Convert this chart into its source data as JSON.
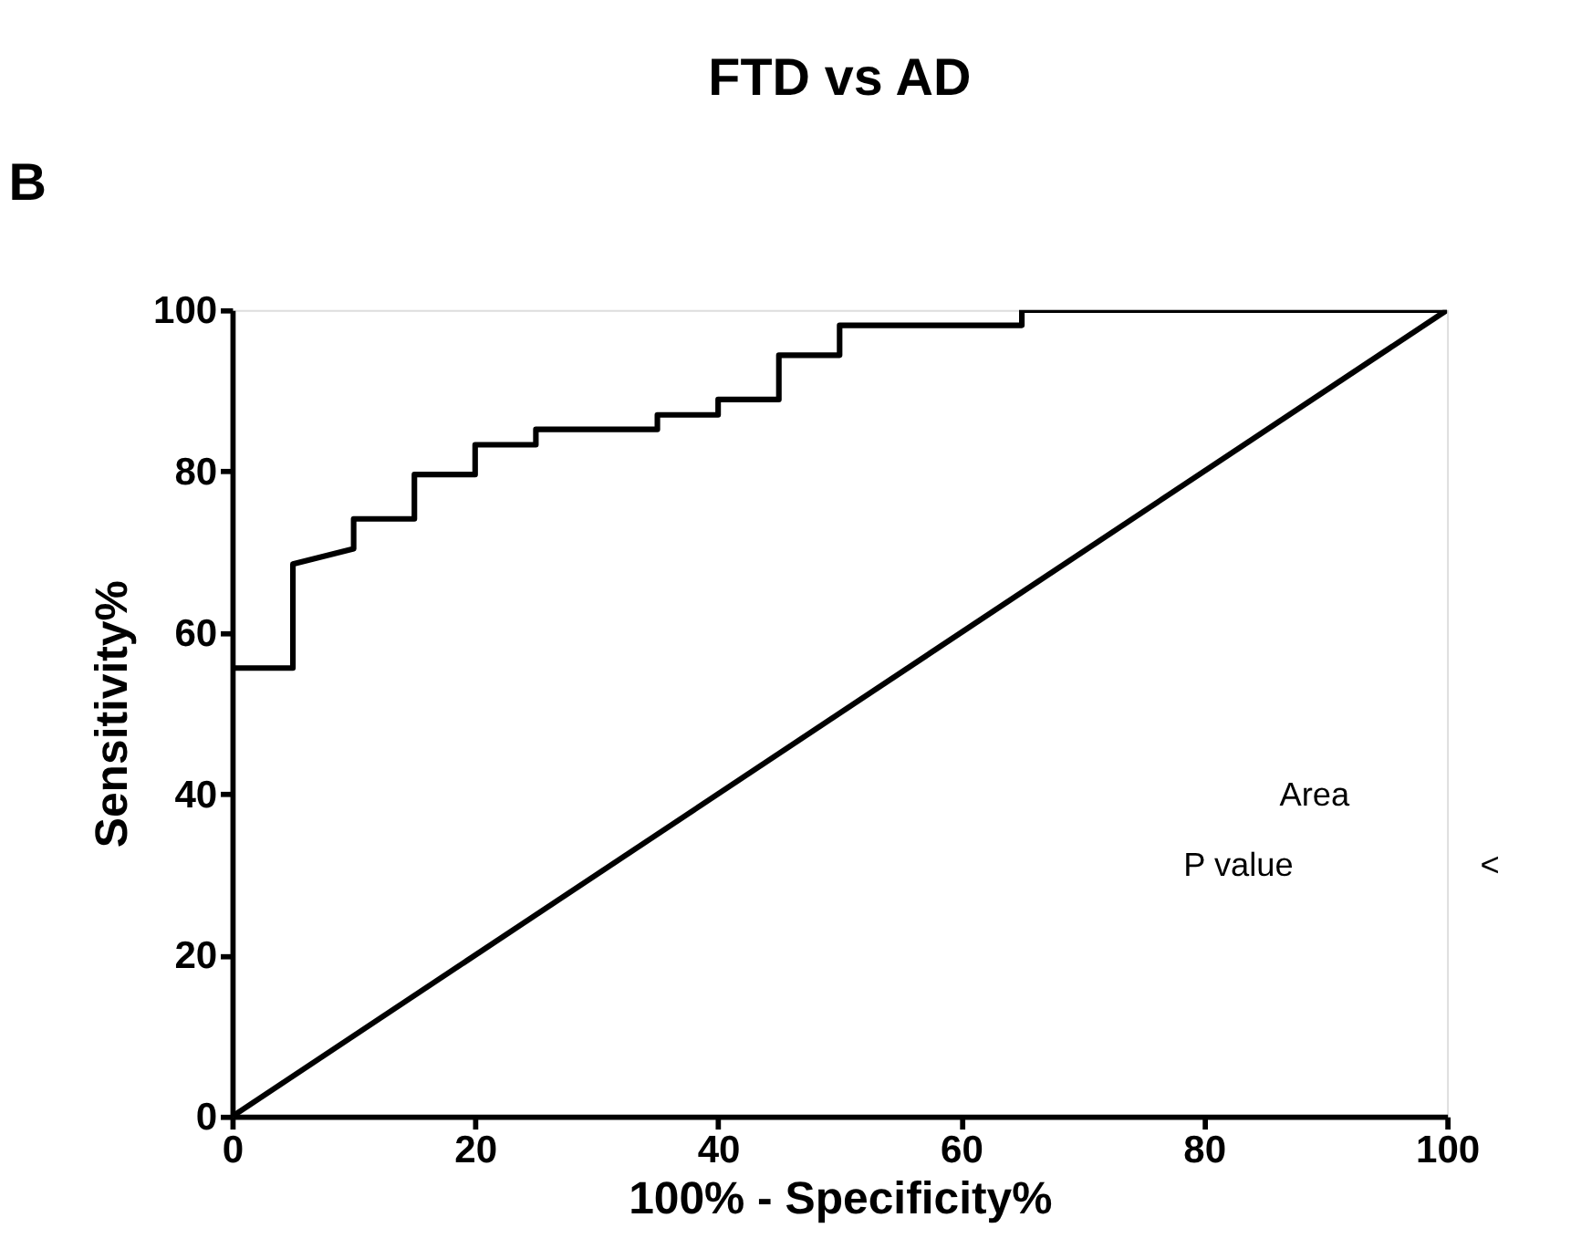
{
  "chart_data": {
    "type": "line",
    "title": "FTD vs AD",
    "xlabel": "100% - Specificity%",
    "ylabel": "Sensitivity%",
    "series": [
      {
        "color": "#000000",
        "x": [
          0,
          5,
          5,
          10,
          10,
          15,
          15,
          20,
          20,
          25,
          25,
          35,
          35,
          40,
          40,
          45,
          45,
          50,
          50,
          65,
          65,
          100
        ],
        "values": [
          55.6,
          55.6,
          68.5,
          70.4,
          74.1,
          74.1,
          79.6,
          79.6,
          83.3,
          83.3,
          85.2,
          85.2,
          87,
          87,
          88.9,
          88.9,
          94.4,
          94.4,
          98.1,
          98.1,
          100,
          100
        ]
      },
      {
        "color": "#000000",
        "x": [
          0,
          100
        ],
        "values": [
          0,
          100
        ]
      }
    ],
    "xlim": [
      0,
      100
    ],
    "ylim": [
      0,
      100
    ],
    "xticks": [
      0,
      20,
      40,
      60,
      80,
      100
    ],
    "yticks": [
      0,
      20,
      40,
      60,
      80,
      100
    ],
    "grid": false,
    "marker": "none",
    "line_style": "solid",
    "annotations": [
      "B",
      "Area",
      "P value",
      "<"
    ]
  }
}
